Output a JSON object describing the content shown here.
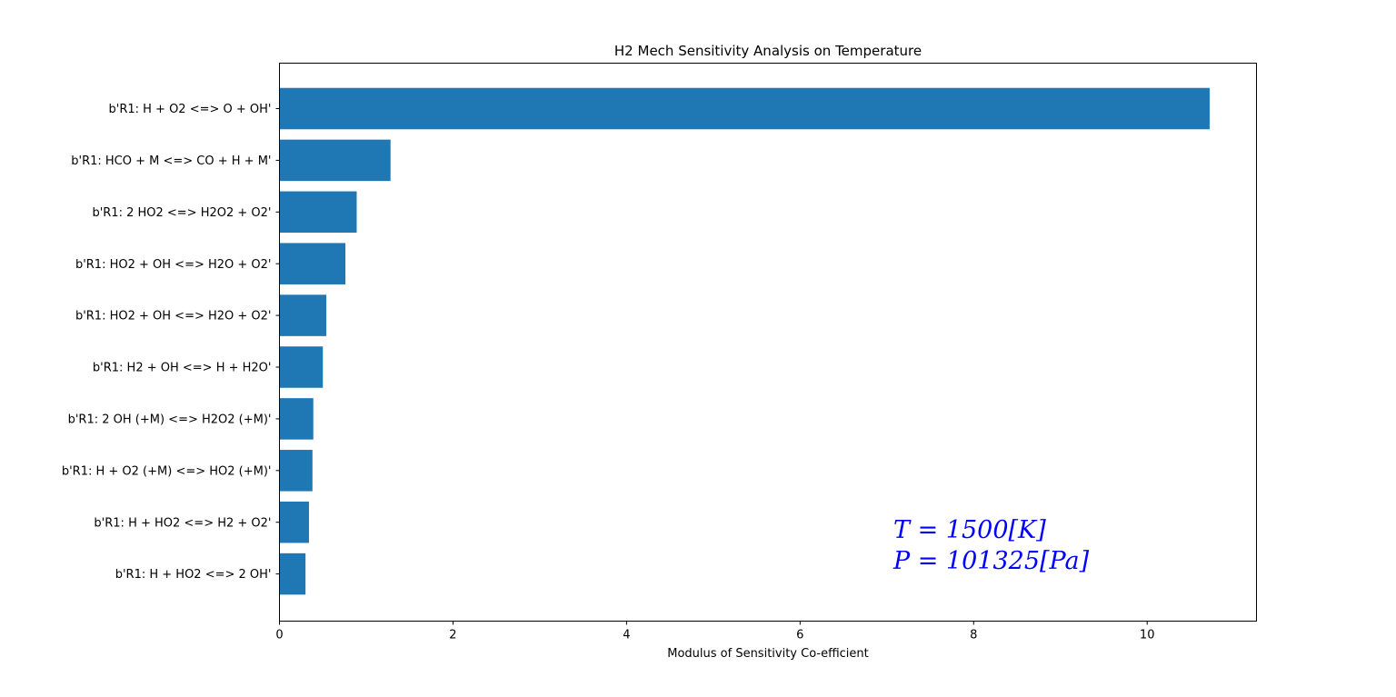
{
  "chart_data": {
    "type": "bar",
    "orientation": "horizontal",
    "title": "H2 Mech Sensitivity Analysis on Temperature",
    "xlabel": "Modulus of Sensitivity Co-efficient",
    "ylabel": "",
    "xlim": [
      0,
      11.26
    ],
    "xticks": [
      0,
      2,
      4,
      6,
      8,
      10
    ],
    "xtick_labels": [
      "0",
      "2",
      "4",
      "6",
      "8",
      "10"
    ],
    "grid": false,
    "bar_color": "#1f77b4",
    "categories": [
      "b'R1: H + O2 <=> O + OH'",
      "b'R1: HCO + M <=> CO + H + M'",
      "b'R1: 2 HO2 <=> H2O2 + O2'",
      "b'R1: HO2 + OH <=> H2O + O2'",
      "b'R1: HO2 + OH <=> H2O + O2'",
      "b'R1: H2 + OH <=> H + H2O'",
      "b'R1: 2 OH (+M) <=> H2O2 (+M)'",
      "b'R1: H + O2 (+M) <=> HO2 (+M)'",
      "b'R1: H + HO2 <=> H2 + O2'",
      "b'R1: H + HO2 <=> 2 OH'"
    ],
    "values": [
      10.72,
      1.28,
      0.89,
      0.76,
      0.54,
      0.5,
      0.39,
      0.38,
      0.34,
      0.3
    ],
    "annotations": [
      {
        "text": "T = 1500[K]",
        "color": "#0000ff"
      },
      {
        "text": "P = 101325[Pa]",
        "color": "#0000ff"
      }
    ]
  }
}
